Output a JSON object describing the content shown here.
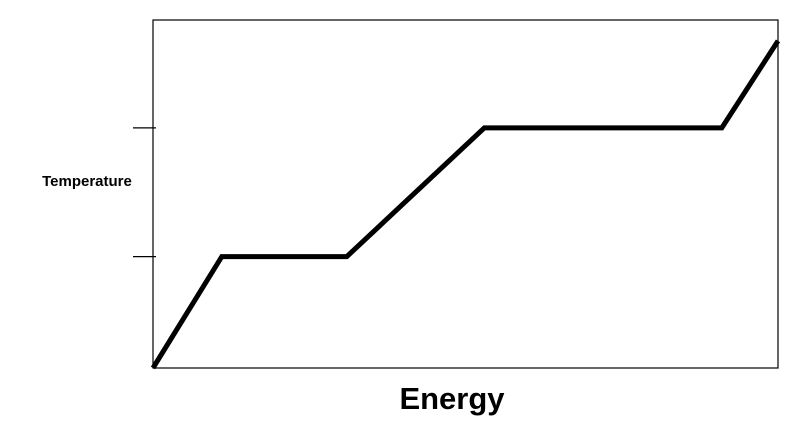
{
  "chart_data": {
    "type": "line",
    "title": "",
    "xlabel": "Energy",
    "ylabel": "Temperature",
    "xlim": [
      0,
      100
    ],
    "ylim": [
      0,
      100
    ],
    "yticks": [
      32,
      69
    ],
    "grid": false,
    "legend": "none",
    "series": [
      {
        "x": [
          0,
          11,
          31,
          53,
          91,
          100
        ],
        "y": [
          0,
          32,
          32,
          69,
          69,
          94
        ]
      }
    ],
    "colors": {
      "line": "#000000",
      "frame": "#000000",
      "background": "#ffffff"
    }
  }
}
